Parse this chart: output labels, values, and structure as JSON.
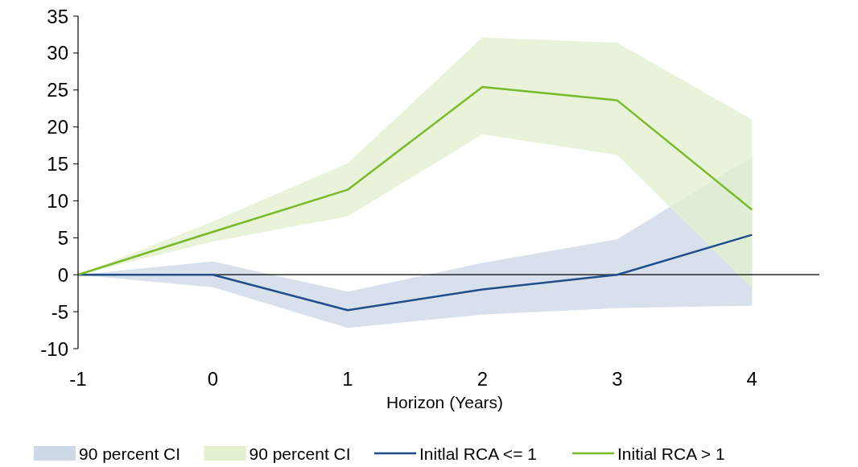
{
  "chart_data": {
    "type": "line",
    "xlabel": "Horizon (Years)",
    "x": [
      -1,
      0,
      1,
      2,
      3,
      4
    ],
    "xlim": [
      -1,
      4.5
    ],
    "xticks": [
      -1,
      0,
      1,
      2,
      3,
      4
    ],
    "ylim": [
      -10,
      35
    ],
    "yticks": [
      -10,
      -5,
      0,
      5,
      10,
      15,
      20,
      25,
      30,
      35
    ],
    "grid": false,
    "legend": "bottom",
    "annotations": [
      "90 percent CI",
      "90 percent CI"
    ],
    "ref_lines": [
      {
        "axis": "y",
        "value": 0,
        "color": "#000000"
      }
    ],
    "series": [
      {
        "name": "Initlal RCA <= 1",
        "color": "#1f4e8c",
        "values": [
          0,
          0,
          -4.8,
          -2.0,
          0,
          5.4
        ],
        "lower": [
          0,
          -1.7,
          -7.2,
          -5.4,
          -4.5,
          -4.2
        ],
        "upper": [
          0,
          1.8,
          -2.3,
          1.6,
          4.8,
          16.0
        ]
      },
      {
        "name": "Initial RCA > 1",
        "color": "#7ab929",
        "values": [
          0,
          5.8,
          11.5,
          25.4,
          23.6,
          8.8
        ],
        "lower": [
          0,
          4.5,
          7.9,
          19.0,
          16.2,
          -1.8
        ],
        "upper": [
          0,
          7.2,
          15.1,
          32.1,
          31.4,
          21.0
        ]
      }
    ]
  }
}
